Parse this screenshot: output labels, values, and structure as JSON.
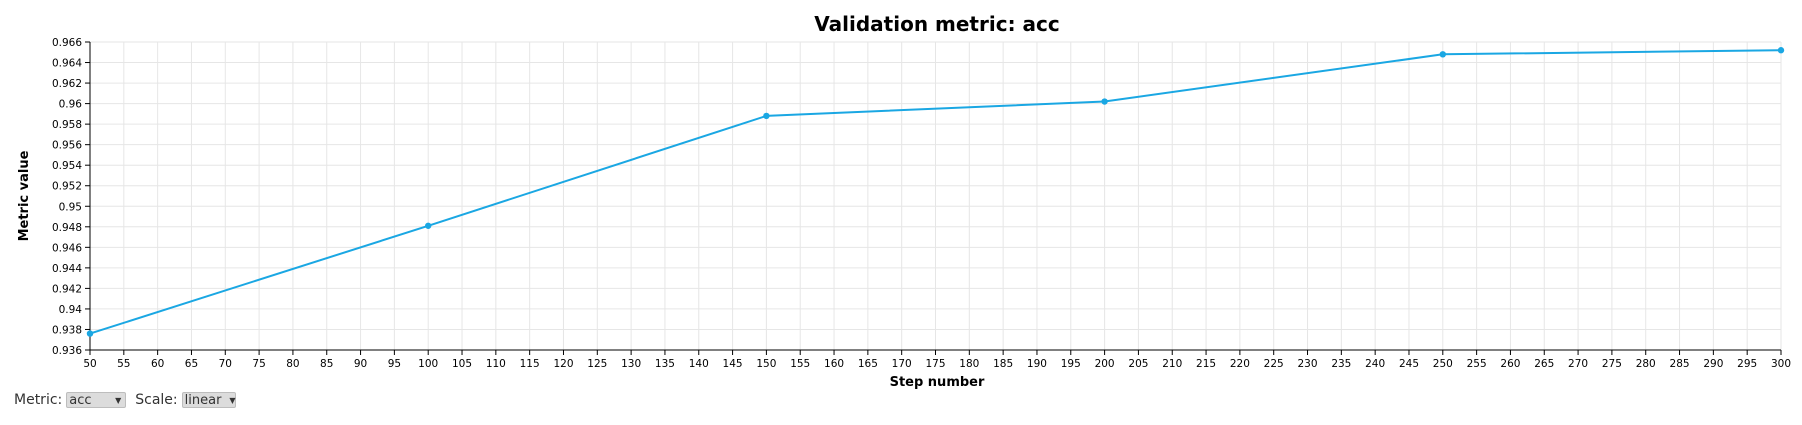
{
  "chart_data": {
    "type": "line",
    "title": "Validation metric: acc",
    "xlabel": "Step number",
    "ylabel": "Metric value",
    "xlim": [
      50,
      300
    ],
    "ylim": [
      0.936,
      0.966
    ],
    "x_ticks": [
      50,
      55,
      60,
      65,
      70,
      75,
      80,
      85,
      90,
      95,
      100,
      105,
      110,
      115,
      120,
      125,
      130,
      135,
      140,
      145,
      150,
      155,
      160,
      165,
      170,
      175,
      180,
      185,
      190,
      195,
      200,
      205,
      210,
      215,
      220,
      225,
      230,
      235,
      240,
      245,
      250,
      255,
      260,
      265,
      270,
      275,
      280,
      285,
      290,
      295,
      300
    ],
    "y_ticks": [
      0.936,
      0.938,
      0.94,
      0.942,
      0.944,
      0.946,
      0.948,
      0.95,
      0.952,
      0.954,
      0.956,
      0.958,
      0.96,
      0.962,
      0.964,
      0.966
    ],
    "y_tick_labels": [
      "0.936",
      "0.938",
      "0.94",
      "0.942",
      "0.944",
      "0.946",
      "0.948",
      "0.95",
      "0.952",
      "0.954",
      "0.956",
      "0.958",
      "0.96",
      "0.962",
      "0.964",
      "0.966"
    ],
    "grid": true,
    "scale": "linear",
    "series": [
      {
        "color": "#1aa7e3",
        "x": [
          50,
          100,
          150,
          200,
          250,
          300
        ],
        "y": [
          0.9376,
          0.9481,
          0.9588,
          0.9602,
          0.9648,
          0.9652
        ]
      }
    ]
  },
  "controls": {
    "metric_label": "Metric:",
    "metric_value": "acc",
    "scale_label": "Scale:",
    "scale_value": "linear",
    "dropdown_icon": "triangle-down-icon"
  }
}
